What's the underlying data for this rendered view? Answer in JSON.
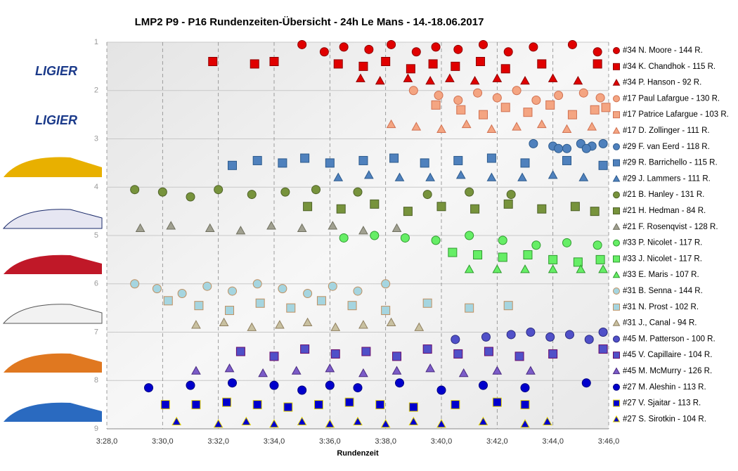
{
  "chart_data": {
    "type": "scatter",
    "title": "LMP2  P9  - P16 Rundenzeiten-Übersicht  - 24h Le Mans  - 14.-18.06.2017",
    "x_label": "Rundenzeit",
    "logos": [
      "LIGIER",
      "LIGIER"
    ],
    "xlim": [
      208,
      226
    ],
    "xticks": [
      {
        "value": 208,
        "label": "3:28,0"
      },
      {
        "value": 210,
        "label": "3:30,0"
      },
      {
        "value": 212,
        "label": "3:32,0"
      },
      {
        "value": 214,
        "label": "3:34,0"
      },
      {
        "value": 216,
        "label": "3:36,0"
      },
      {
        "value": 218,
        "label": "3:38,0"
      },
      {
        "value": 220,
        "label": "3:40,0"
      },
      {
        "value": 222,
        "label": "3:42,0"
      },
      {
        "value": 224,
        "label": "3:44,0"
      },
      {
        "value": 226,
        "label": "3:46,0"
      }
    ],
    "ylim": [
      9,
      1
    ],
    "yticks": [
      1,
      2,
      3,
      4,
      5,
      6,
      7,
      8,
      9
    ],
    "grid": true,
    "legend": "right",
    "series": [
      {
        "name": "#34 N. Moore - 144 R.",
        "color": "#e00000",
        "stroke": "#900000",
        "marker": "circle",
        "x": [
          215.0,
          215.8,
          216.5,
          217.4,
          218.2,
          219.1,
          219.8,
          220.6,
          221.5,
          222.4,
          223.3,
          224.7,
          225.6
        ],
        "values": [
          1.05,
          1.2,
          1.1,
          1.15,
          1.05,
          1.2,
          1.1,
          1.15,
          1.05,
          1.2,
          1.1,
          1.05,
          1.2
        ]
      },
      {
        "name": "#34 K. Chandhok - 115 R.",
        "color": "#e00000",
        "stroke": "#900000",
        "marker": "square",
        "x": [
          211.8,
          213.3,
          214.0,
          216.3,
          217.2,
          218.0,
          218.9,
          219.7,
          220.5,
          221.4,
          222.3,
          223.6,
          225.6
        ],
        "values": [
          1.4,
          1.45,
          1.4,
          1.45,
          1.5,
          1.4,
          1.55,
          1.45,
          1.5,
          1.4,
          1.55,
          1.45,
          1.45
        ]
      },
      {
        "name": "#34 P. Hanson - 92 R.",
        "color": "#e00000",
        "stroke": "#900000",
        "marker": "triangle",
        "x": [
          217.1,
          217.8,
          218.8,
          219.6,
          220.3,
          221.2,
          222.0,
          223.0,
          224.0,
          224.9
        ],
        "values": [
          1.75,
          1.8,
          1.75,
          1.8,
          1.75,
          1.8,
          1.75,
          1.8,
          1.75,
          1.8
        ]
      },
      {
        "name": "#17 Paul Lafargue - 130 R.",
        "color": "#f4a582",
        "stroke": "#d07050",
        "marker": "circle",
        "x": [
          219.0,
          219.9,
          220.6,
          221.3,
          222.0,
          222.7,
          223.4,
          224.2,
          225.1,
          225.7
        ],
        "values": [
          2.0,
          2.1,
          2.2,
          2.05,
          2.15,
          2.0,
          2.2,
          2.1,
          2.05,
          2.15
        ]
      },
      {
        "name": "#17 Patrice Lafargue - 103 R.",
        "color": "#f4a582",
        "stroke": "#d07050",
        "marker": "square",
        "x": [
          219.8,
          220.7,
          221.5,
          222.3,
          223.1,
          223.9,
          224.7,
          225.5,
          225.9
        ],
        "values": [
          2.3,
          2.4,
          2.5,
          2.35,
          2.45,
          2.3,
          2.5,
          2.4,
          2.35
        ]
      },
      {
        "name": "#17 D. Zollinger - 111 R.",
        "color": "#f4a582",
        "stroke": "#d07050",
        "marker": "triangle",
        "x": [
          218.2,
          219.1,
          220.0,
          220.9,
          221.8,
          222.7,
          223.6,
          224.5,
          225.4
        ],
        "values": [
          2.7,
          2.75,
          2.8,
          2.7,
          2.8,
          2.75,
          2.7,
          2.8,
          2.75
        ]
      },
      {
        "name": "#29 F. van Eerd - 118 R.",
        "color": "#4f81bd",
        "stroke": "#2c5a8c",
        "marker": "circle",
        "x": [
          223.3,
          224.0,
          224.5,
          225.0,
          225.4,
          225.8,
          224.2,
          225.2
        ],
        "values": [
          3.1,
          3.15,
          3.2,
          3.1,
          3.15,
          3.1,
          3.2,
          3.2
        ]
      },
      {
        "name": "#29 R. Barrichello - 115 R.",
        "color": "#4f81bd",
        "stroke": "#2c5a8c",
        "marker": "square",
        "x": [
          212.5,
          213.4,
          214.3,
          215.1,
          216.0,
          217.2,
          218.3,
          219.4,
          220.6,
          221.8,
          223.0,
          224.5,
          225.8
        ],
        "values": [
          3.55,
          3.45,
          3.5,
          3.4,
          3.5,
          3.45,
          3.4,
          3.5,
          3.45,
          3.4,
          3.5,
          3.45,
          3.55
        ]
      },
      {
        "name": "#29 J. Lammers - 111 R.",
        "color": "#4f81bd",
        "stroke": "#2c5a8c",
        "marker": "triangle",
        "x": [
          216.3,
          217.4,
          218.5,
          219.6,
          220.7,
          221.8,
          222.9,
          224.0,
          225.1
        ],
        "values": [
          3.8,
          3.75,
          3.8,
          3.8,
          3.75,
          3.8,
          3.8,
          3.75,
          3.8
        ]
      },
      {
        "name": "#21 B. Hanley - 131 R.",
        "color": "#77933c",
        "stroke": "#4f6228",
        "marker": "circle",
        "x": [
          209.0,
          210.0,
          211.0,
          212.0,
          213.2,
          214.4,
          215.5,
          217.0,
          219.5,
          221.0,
          222.5
        ],
        "values": [
          4.05,
          4.1,
          4.2,
          4.05,
          4.15,
          4.1,
          4.05,
          4.1,
          4.15,
          4.1,
          4.15
        ]
      },
      {
        "name": "#21 H. Hedman - 84 R.",
        "color": "#77933c",
        "stroke": "#4f6228",
        "marker": "square",
        "x": [
          215.2,
          216.4,
          217.6,
          218.8,
          220.0,
          221.2,
          222.4,
          223.6,
          224.8,
          225.5
        ],
        "values": [
          4.4,
          4.45,
          4.35,
          4.5,
          4.4,
          4.45,
          4.35,
          4.45,
          4.4,
          4.5
        ]
      },
      {
        "name": "#21 F. Rosenqvist - 128 R.",
        "color": "#a0a090",
        "stroke": "#707060",
        "marker": "triangle",
        "x": [
          209.2,
          210.3,
          211.7,
          212.8,
          213.9,
          215.0,
          216.1,
          217.2,
          218.4
        ],
        "values": [
          4.85,
          4.8,
          4.85,
          4.9,
          4.8,
          4.85,
          4.8,
          4.9,
          4.85
        ]
      },
      {
        "name": "#33 P. Nicolet - 117 R.",
        "color": "#66ee66",
        "stroke": "#2e9a2e",
        "marker": "circle",
        "x": [
          216.5,
          217.6,
          218.7,
          219.8,
          221.0,
          222.2,
          223.4,
          224.5,
          225.6
        ],
        "values": [
          5.05,
          5.0,
          5.05,
          5.1,
          5.0,
          5.1,
          5.2,
          5.15,
          5.2
        ]
      },
      {
        "name": "#33 J. Nicolet - 117 R.",
        "color": "#66ee66",
        "stroke": "#2e9a2e",
        "marker": "square",
        "x": [
          220.4,
          221.3,
          222.2,
          223.1,
          224.0,
          224.9,
          225.7
        ],
        "values": [
          5.35,
          5.4,
          5.45,
          5.4,
          5.5,
          5.55,
          5.5
        ]
      },
      {
        "name": "#33 E. Maris - 107 R.",
        "color": "#66ee66",
        "stroke": "#2e9a2e",
        "marker": "triangle",
        "x": [
          221.0,
          222.0,
          223.0,
          224.0,
          225.0,
          225.8
        ],
        "values": [
          5.7,
          5.7,
          5.7,
          5.7,
          5.7,
          5.7
        ]
      },
      {
        "name": "#31 B. Senna - 144 R.",
        "color": "#a5d5e0",
        "stroke": "#c09060",
        "marker": "circle",
        "x": [
          209.0,
          209.8,
          210.7,
          211.6,
          212.5,
          213.4,
          214.3,
          215.2,
          216.1,
          217.0,
          218.0
        ],
        "values": [
          6.0,
          6.1,
          6.2,
          6.05,
          6.15,
          6.0,
          6.1,
          6.2,
          6.05,
          6.15,
          6.0
        ]
      },
      {
        "name": "#31 N. Prost - 102 R.",
        "color": "#a5d5e0",
        "stroke": "#c09060",
        "marker": "square",
        "x": [
          210.2,
          211.3,
          212.4,
          213.5,
          214.6,
          215.7,
          216.8,
          218.0,
          219.5,
          221.0,
          222.4
        ],
        "values": [
          6.35,
          6.45,
          6.55,
          6.4,
          6.5,
          6.35,
          6.45,
          6.55,
          6.4,
          6.5,
          6.45
        ]
      },
      {
        "name": "#31 J., Canal - 94 R.",
        "color": "#c8c0a0",
        "stroke": "#908060",
        "marker": "triangle",
        "x": [
          211.2,
          212.2,
          213.2,
          214.2,
          215.2,
          216.2,
          217.2,
          218.2,
          219.2
        ],
        "values": [
          6.85,
          6.8,
          6.9,
          6.85,
          6.8,
          6.9,
          6.85,
          6.8,
          6.9
        ]
      },
      {
        "name": "#45 M. Patterson - 100 R.",
        "color": "#5050c8",
        "stroke": "#2a2a80",
        "marker": "circle",
        "x": [
          220.5,
          221.6,
          222.5,
          223.2,
          223.9,
          224.6,
          225.3,
          225.8
        ],
        "values": [
          7.15,
          7.1,
          7.05,
          7.0,
          7.1,
          7.05,
          7.15,
          7.0
        ]
      },
      {
        "name": "#45 V. Capillaire - 104 R.",
        "color": "#5050c8",
        "stroke": "#6a0a6a",
        "marker": "square",
        "x": [
          212.8,
          214.0,
          215.1,
          216.2,
          217.3,
          218.4,
          219.5,
          220.6,
          221.7,
          222.8,
          224.0,
          225.8
        ],
        "values": [
          7.4,
          7.5,
          7.35,
          7.45,
          7.4,
          7.5,
          7.35,
          7.45,
          7.4,
          7.5,
          7.45,
          7.35
        ]
      },
      {
        "name": "#45 M. McMurry - 126 R.",
        "color": "#7b5cc8",
        "stroke": "#4a2a80",
        "marker": "triangle",
        "x": [
          211.2,
          212.4,
          213.6,
          214.8,
          216.0,
          217.2,
          218.4,
          219.6,
          220.8,
          222.0,
          223.2
        ],
        "values": [
          7.8,
          7.75,
          7.85,
          7.8,
          7.75,
          7.85,
          7.8,
          7.75,
          7.85,
          7.8,
          7.8
        ]
      },
      {
        "name": "#27 M. Aleshin - 113 R.",
        "color": "#0000cc",
        "stroke": "#000080",
        "marker": "circle",
        "x": [
          209.5,
          211.0,
          212.5,
          214.0,
          215.0,
          216.0,
          217.0,
          218.5,
          220.0,
          221.5,
          223.0,
          225.2
        ],
        "values": [
          8.15,
          8.1,
          8.05,
          8.1,
          8.2,
          8.1,
          8.15,
          8.05,
          8.2,
          8.1,
          8.15,
          8.05
        ]
      },
      {
        "name": "#27 V. Sjaitar - 113 R.",
        "color": "#0000cc",
        "stroke": "#e0d000",
        "marker": "square",
        "x": [
          210.1,
          211.2,
          212.3,
          213.4,
          214.5,
          215.6,
          216.7,
          217.8,
          219.0,
          220.5,
          222.0,
          223.0
        ],
        "values": [
          8.5,
          8.5,
          8.45,
          8.5,
          8.55,
          8.5,
          8.45,
          8.5,
          8.55,
          8.5,
          8.45,
          8.5
        ]
      },
      {
        "name": "#27 S. Sirotkin - 104 R.",
        "color": "#0000cc",
        "stroke": "#e0d000",
        "marker": "triangle",
        "x": [
          210.5,
          212.0,
          213.0,
          214.0,
          215.0,
          216.0,
          217.0,
          218.0,
          219.0,
          220.0,
          221.5,
          223.0,
          223.8
        ],
        "values": [
          8.85,
          8.9,
          8.85,
          8.9,
          8.85,
          8.9,
          8.85,
          8.9,
          8.85,
          8.9,
          8.85,
          8.9,
          8.85
        ]
      }
    ]
  }
}
